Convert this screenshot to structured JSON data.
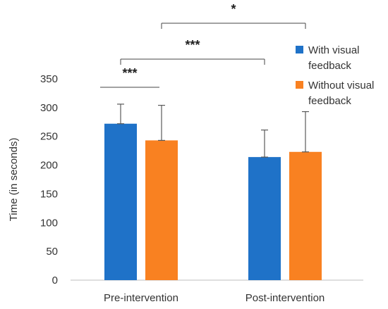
{
  "chart_data": {
    "type": "bar",
    "ylabel": "Time (in seconds)",
    "xlabel": "",
    "ylim": [
      0,
      350
    ],
    "yticks": [
      0,
      50,
      100,
      150,
      200,
      250,
      300,
      350
    ],
    "categories": [
      "Pre-intervention",
      "Post-intervention"
    ],
    "series": [
      {
        "name": "With visual feedback",
        "name_lines": [
          "With visual",
          "feedback"
        ],
        "color": "#1f72c8",
        "values": [
          272,
          214
        ],
        "errors": [
          34,
          47
        ]
      },
      {
        "name": "Without visual feedback",
        "name_lines": [
          "Without visual",
          "feedback"
        ],
        "color": "#f98121",
        "values": [
          243,
          223
        ],
        "errors": [
          61,
          70
        ]
      }
    ],
    "legend": "right",
    "grid": false,
    "significance": [
      {
        "label": "***",
        "from": "Pre-intervention: With visual feedback",
        "to": "Pre-intervention: Without visual feedback"
      },
      {
        "label": "***",
        "from": "Pre-intervention: With visual feedback",
        "to": "Post-intervention: With visual feedback"
      },
      {
        "label": "*",
        "from": "Pre-intervention: Without visual feedback",
        "to": "Post-intervention: Without visual feedback"
      }
    ]
  }
}
